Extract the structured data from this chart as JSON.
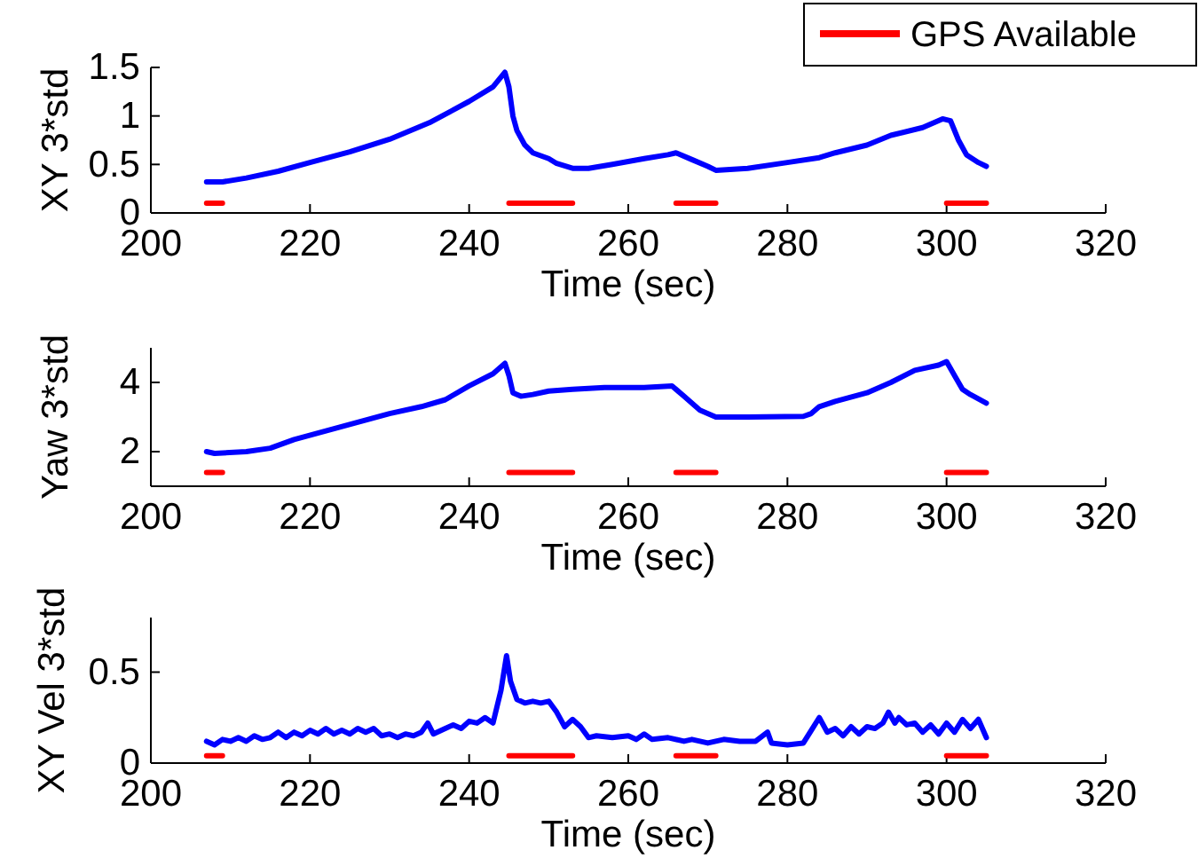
{
  "chart_data": [
    {
      "type": "line",
      "ylabel": "XY 3*std",
      "xlabel": "Time (sec)",
      "xlim": [
        200,
        320
      ],
      "xticks": [
        200,
        220,
        240,
        260,
        280,
        300,
        320
      ],
      "ylim": [
        0,
        1.5
      ],
      "yticks": [
        0,
        0.5,
        1,
        1.5
      ],
      "legend": "top right",
      "series": [
        {
          "color": "#0000ff",
          "x": [
            207,
            209,
            212,
            216,
            220,
            225,
            230,
            235,
            240,
            243,
            244.5,
            245,
            245.5,
            246,
            247,
            248,
            250,
            251,
            253,
            255,
            258,
            262,
            265,
            266,
            268,
            270,
            271,
            275,
            280,
            284,
            286,
            290,
            293,
            297,
            299.5,
            300.5,
            301.5,
            302.5,
            304,
            305
          ],
          "values": [
            0.32,
            0.32,
            0.36,
            0.43,
            0.52,
            0.63,
            0.76,
            0.93,
            1.15,
            1.3,
            1.45,
            1.3,
            1.0,
            0.85,
            0.7,
            0.62,
            0.56,
            0.51,
            0.46,
            0.46,
            0.5,
            0.56,
            0.6,
            0.62,
            0.55,
            0.48,
            0.44,
            0.46,
            0.52,
            0.57,
            0.62,
            0.7,
            0.8,
            0.88,
            0.97,
            0.95,
            0.75,
            0.6,
            0.52,
            0.48
          ]
        },
        {
          "name": "GPS Available",
          "color": "#ff0000",
          "x": [
            207,
            209,
            209.5,
            245,
            253,
            253.5,
            266,
            271,
            271.5,
            300,
            305
          ],
          "values": [
            0.1,
            0.1,
            null,
            0.1,
            0.1,
            null,
            0.1,
            0.1,
            null,
            0.1,
            0.1
          ]
        }
      ]
    },
    {
      "type": "line",
      "ylabel": "Yaw 3*std",
      "xlabel": "Time (sec)",
      "xlim": [
        200,
        320
      ],
      "xticks": [
        200,
        220,
        240,
        260,
        280,
        300,
        320
      ],
      "ylim": [
        1,
        5
      ],
      "yticks": [
        2,
        4
      ],
      "series": [
        {
          "color": "#0000ff",
          "x": [
            207,
            208,
            212,
            215,
            218,
            222,
            226,
            230,
            234,
            237,
            240,
            243,
            244.5,
            245,
            245.5,
            246.5,
            248,
            250,
            253,
            257,
            262,
            265.5,
            267,
            269,
            271,
            275,
            282,
            283,
            284,
            286,
            290,
            293,
            296,
            299,
            300,
            301,
            302,
            303,
            305
          ],
          "values": [
            2.0,
            1.95,
            2.0,
            2.1,
            2.35,
            2.6,
            2.85,
            3.1,
            3.3,
            3.5,
            3.9,
            4.25,
            4.55,
            4.2,
            3.7,
            3.6,
            3.65,
            3.75,
            3.8,
            3.85,
            3.85,
            3.9,
            3.6,
            3.2,
            3.0,
            3.0,
            3.02,
            3.1,
            3.3,
            3.45,
            3.7,
            4.0,
            4.35,
            4.5,
            4.6,
            4.2,
            3.8,
            3.65,
            3.4
          ]
        },
        {
          "color": "#ff0000",
          "x": [
            207,
            209,
            209.5,
            245,
            253,
            253.5,
            266,
            271,
            271.5,
            300,
            305
          ],
          "values": [
            1.4,
            1.4,
            null,
            1.4,
            1.4,
            null,
            1.4,
            1.4,
            null,
            1.4,
            1.4
          ]
        }
      ]
    },
    {
      "type": "line",
      "ylabel": "XY Vel 3*std",
      "xlabel": "Time (sec)",
      "xlim": [
        200,
        320
      ],
      "xticks": [
        200,
        220,
        240,
        260,
        280,
        300,
        320
      ],
      "ylim": [
        0,
        0.8
      ],
      "yticks": [
        0,
        0.5
      ],
      "series": [
        {
          "color": "#0000ff",
          "x": [
            207,
            208,
            209,
            210,
            211,
            212,
            213,
            214,
            215,
            216,
            217,
            218,
            219,
            220,
            221,
            222,
            223,
            224,
            225,
            226,
            227,
            228,
            229,
            230,
            231,
            232,
            233,
            234,
            234.8,
            235.5,
            237,
            238,
            239,
            240,
            241,
            242,
            243,
            244,
            244.7,
            245.2,
            246,
            247,
            248,
            249,
            250,
            251,
            252,
            253,
            254,
            255,
            256,
            258,
            260,
            261,
            262,
            263,
            265,
            267,
            268,
            270,
            272,
            274,
            276,
            277.5,
            278,
            280,
            282,
            283,
            284,
            285,
            286,
            287,
            288,
            289,
            290,
            291,
            292,
            292.7,
            293.5,
            294,
            295,
            296,
            297,
            298,
            299,
            300,
            301,
            302,
            303,
            304,
            305
          ],
          "values": [
            0.12,
            0.1,
            0.13,
            0.12,
            0.14,
            0.12,
            0.15,
            0.13,
            0.14,
            0.17,
            0.14,
            0.17,
            0.15,
            0.18,
            0.16,
            0.19,
            0.16,
            0.18,
            0.16,
            0.19,
            0.17,
            0.19,
            0.15,
            0.16,
            0.14,
            0.16,
            0.15,
            0.17,
            0.22,
            0.16,
            0.19,
            0.21,
            0.19,
            0.23,
            0.22,
            0.25,
            0.22,
            0.4,
            0.59,
            0.45,
            0.35,
            0.33,
            0.34,
            0.33,
            0.34,
            0.28,
            0.2,
            0.24,
            0.2,
            0.14,
            0.15,
            0.14,
            0.15,
            0.13,
            0.16,
            0.13,
            0.14,
            0.12,
            0.13,
            0.11,
            0.13,
            0.12,
            0.12,
            0.17,
            0.11,
            0.1,
            0.11,
            0.18,
            0.25,
            0.17,
            0.19,
            0.15,
            0.2,
            0.16,
            0.2,
            0.19,
            0.22,
            0.28,
            0.22,
            0.25,
            0.21,
            0.22,
            0.17,
            0.21,
            0.16,
            0.22,
            0.17,
            0.24,
            0.19,
            0.24,
            0.14
          ]
        },
        {
          "color": "#ff0000",
          "x": [
            207,
            209,
            209.5,
            245,
            253,
            253.5,
            266,
            271,
            271.5,
            300,
            305
          ],
          "values": [
            0.04,
            0.04,
            null,
            0.04,
            0.04,
            null,
            0.04,
            0.04,
            null,
            0.04,
            0.04
          ]
        }
      ]
    }
  ]
}
